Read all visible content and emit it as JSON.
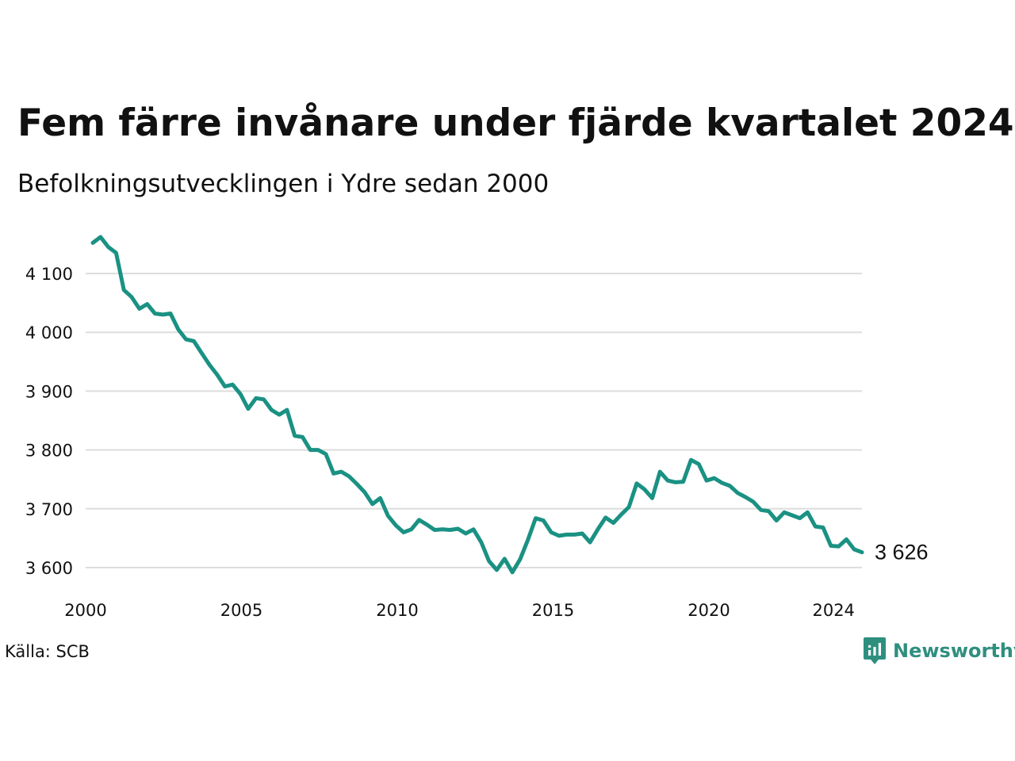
{
  "title": "Fem färre invånare under fjärde kvartalet 2024",
  "subtitle": "Befolkningsutvecklingen i Ydre sedan 2000",
  "source": "Källa: SCB",
  "brand": {
    "name": "Newsworthy",
    "icon": "newsworthy-logo-icon"
  },
  "colors": {
    "line": "#1a9183",
    "grid": "#dddddd",
    "text": "#111111",
    "brand": "#2f8f7f"
  },
  "chart_data": {
    "type": "line",
    "title": "Fem färre invånare under fjärde kvartalet 2024",
    "subtitle": "Befolkningsutvecklingen i Ydre sedan 2000",
    "xlabel": "",
    "ylabel": "",
    "grid": true,
    "x_ticks": [
      "2000",
      "2005",
      "2010",
      "2015",
      "2020",
      "2024"
    ],
    "y_ticks": [
      "3 600",
      "3 700",
      "3 800",
      "3 900",
      "4 000",
      "4 100"
    ],
    "y_tick_values": [
      3600,
      3700,
      3800,
      3900,
      4000,
      4100
    ],
    "ylim": [
      3585,
      4165
    ],
    "x_start": "2000 Q1",
    "x_end": "2024 Q4",
    "end_label": "3 626",
    "series": [
      {
        "values": [
          4152,
          4162,
          4145,
          4135,
          4072,
          4060,
          4040,
          4048,
          4032,
          4030,
          4032,
          4005,
          3988,
          3985,
          3965,
          3945,
          3928,
          3908,
          3911,
          3895,
          3870,
          3888,
          3886,
          3868,
          3860,
          3868,
          3824,
          3822,
          3800,
          3800,
          3793,
          3760,
          3763,
          3755,
          3742,
          3728,
          3708,
          3718,
          3688,
          3672,
          3660,
          3665,
          3681,
          3673,
          3664,
          3665,
          3664,
          3666,
          3658,
          3665,
          3643,
          3611,
          3596,
          3615,
          3592,
          3614,
          3647,
          3684,
          3680,
          3660,
          3654,
          3656,
          3656,
          3658,
          3643,
          3665,
          3685,
          3676,
          3690,
          3703,
          3743,
          3733,
          3718,
          3763,
          3748,
          3745,
          3746,
          3783,
          3776,
          3748,
          3752,
          3744,
          3739,
          3727,
          3720,
          3712,
          3698,
          3696,
          3680,
          3694,
          3689,
          3684,
          3694,
          3670,
          3668,
          3637,
          3636,
          3648,
          3631,
          3626
        ]
      }
    ]
  }
}
